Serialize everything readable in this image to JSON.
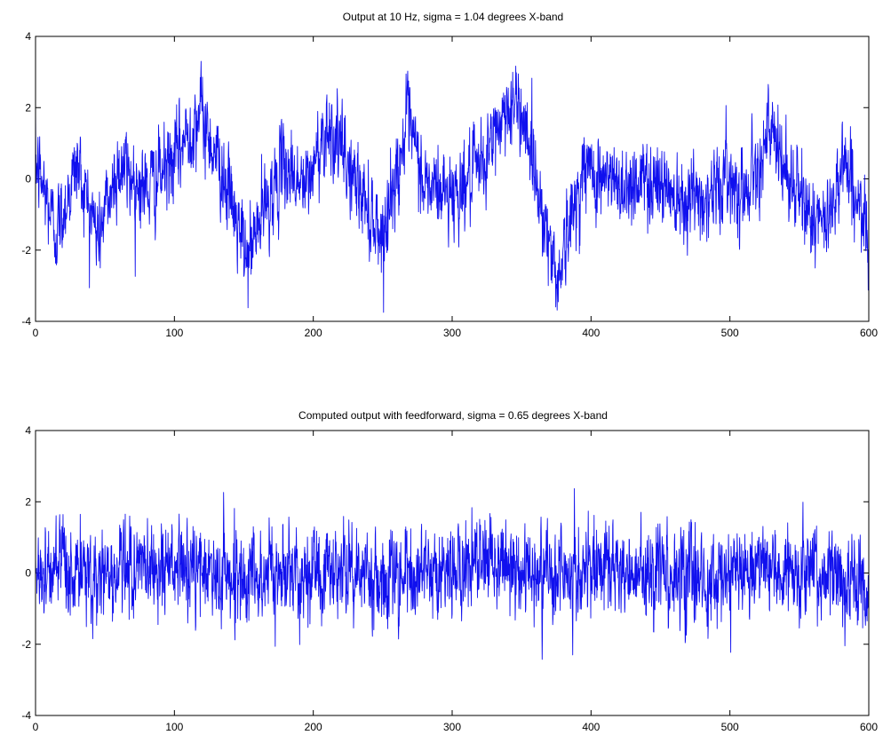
{
  "chart_data": [
    {
      "type": "line",
      "title": "Output at 10 Hz, sigma = 1.04 degrees X-band",
      "xlabel": "",
      "ylabel": "",
      "xlim": [
        0,
        600
      ],
      "ylim": [
        -4,
        4
      ],
      "xticks": [
        "0",
        "100",
        "200",
        "300",
        "400",
        "500",
        "600"
      ],
      "yticks": [
        "4",
        "2",
        "0",
        "-2",
        "-4"
      ],
      "grid": false,
      "color": "#1010ee",
      "series": [
        {
          "name": "",
          "sigma": 1.04,
          "trend_x": [
            0,
            15,
            30,
            45,
            60,
            80,
            100,
            118,
            135,
            152,
            165,
            180,
            195,
            210,
            228,
            250,
            268,
            280,
            300,
            320,
            340,
            352,
            362,
            375,
            395,
            420,
            440,
            460,
            480,
            500,
            510,
            528,
            545,
            568,
            582,
            600
          ],
          "trend_y": [
            0.5,
            -1.5,
            0.4,
            -1.6,
            0.4,
            -0.3,
            0.5,
            1.9,
            0.2,
            -2.3,
            -0.8,
            0.4,
            -0.3,
            1.6,
            0.1,
            -1.6,
            1.6,
            -0.2,
            -0.4,
            0.2,
            2.1,
            1.8,
            -0.3,
            -2.8,
            0.3,
            -0.2,
            0.0,
            -0.3,
            -0.6,
            0.1,
            -0.4,
            1.3,
            -0.2,
            -1.5,
            0.7,
            -1.9
          ]
        }
      ]
    },
    {
      "type": "line",
      "title": "Computed output with feedforward, sigma = 0.65 degrees X-band",
      "xlabel": "",
      "ylabel": "",
      "xlim": [
        0,
        600
      ],
      "ylim": [
        -4,
        4
      ],
      "xticks": [
        "0",
        "100",
        "200",
        "300",
        "400",
        "500",
        "600"
      ],
      "yticks": [
        "4",
        "2",
        "0",
        "-2",
        "-4"
      ],
      "grid": false,
      "color": "#1010ee",
      "series": [
        {
          "name": "",
          "sigma": 0.65,
          "trend_x": [
            0,
            40,
            80,
            120,
            160,
            200,
            240,
            280,
            320,
            360,
            400,
            440,
            480,
            520,
            560,
            600
          ],
          "trend_y": [
            0.1,
            -0.1,
            0.2,
            0.0,
            -0.1,
            0.1,
            0.0,
            -0.1,
            0.2,
            0.1,
            0.0,
            0.1,
            -0.1,
            0.0,
            0.0,
            -0.4
          ]
        }
      ]
    }
  ]
}
